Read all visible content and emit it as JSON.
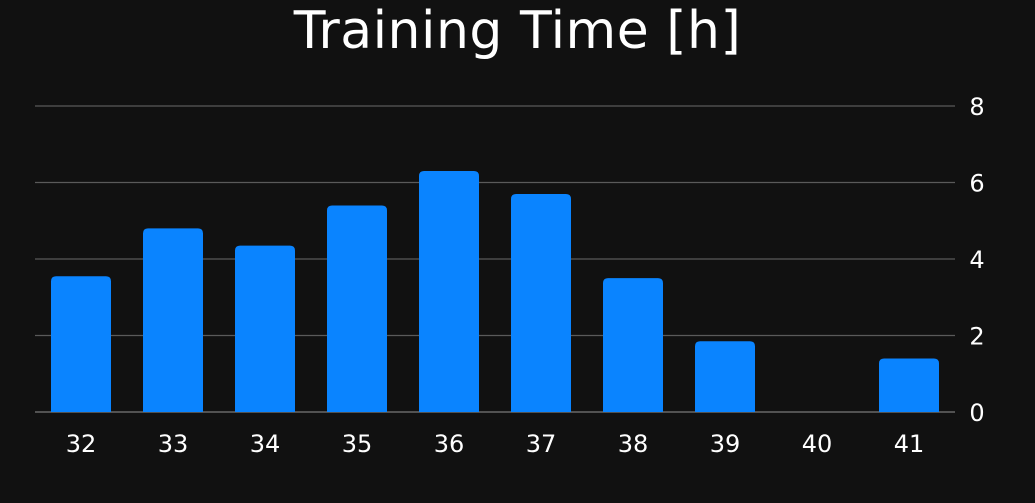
{
  "colors": {
    "background": "#111111",
    "bar": "#0A84FF",
    "text": "#FFFFFF",
    "grid": "#5A5A5A",
    "baseline": "#7A7A7A"
  },
  "chart_data": {
    "type": "bar",
    "title": "Training Time [h]",
    "xlabel": "",
    "ylabel": "",
    "categories": [
      "32",
      "33",
      "34",
      "35",
      "36",
      "37",
      "38",
      "39",
      "40",
      "41"
    ],
    "values": [
      3.55,
      4.8,
      4.35,
      5.4,
      6.3,
      5.7,
      3.5,
      1.85,
      0,
      1.4
    ],
    "ylim": [
      0,
      8
    ],
    "yticks": [
      0,
      2,
      4,
      6,
      8
    ],
    "grid": true,
    "y_axis_position": "right",
    "legend": "none"
  }
}
